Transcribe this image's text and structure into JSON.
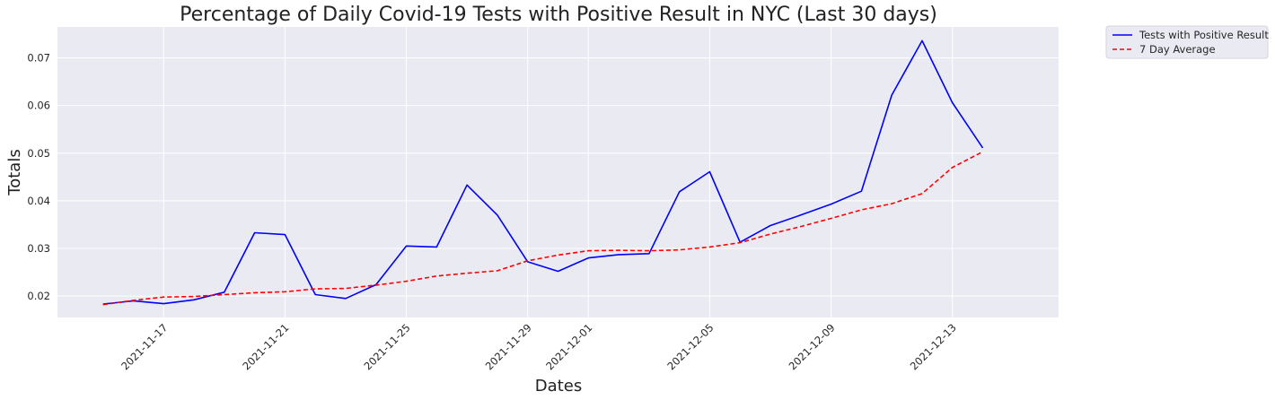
{
  "chart_data": {
    "type": "line",
    "title": "Percentage of Daily Covid-19 Tests with Positive Result in NYC (Last 30 days)",
    "xlabel": "Dates",
    "ylabel": "Totals",
    "x": [
      "2021-11-15",
      "2021-11-16",
      "2021-11-17",
      "2021-11-18",
      "2021-11-19",
      "2021-11-20",
      "2021-11-21",
      "2021-11-22",
      "2021-11-23",
      "2021-11-24",
      "2021-11-25",
      "2021-11-26",
      "2021-11-27",
      "2021-11-28",
      "2021-11-29",
      "2021-11-30",
      "2021-12-01",
      "2021-12-02",
      "2021-12-03",
      "2021-12-04",
      "2021-12-05",
      "2021-12-06",
      "2021-12-07",
      "2021-12-08",
      "2021-12-09",
      "2021-12-10",
      "2021-12-11",
      "2021-12-12",
      "2021-12-13",
      "2021-12-14"
    ],
    "xticks": [
      "2021-11-17",
      "2021-11-21",
      "2021-11-25",
      "2021-11-29",
      "2021-12-01",
      "2021-12-05",
      "2021-12-09",
      "2021-12-13"
    ],
    "xlim": [
      "2021-11-13T12:00",
      "2021-12-16T12:00"
    ],
    "yticks": [
      0.02,
      0.03,
      0.04,
      0.05,
      0.06,
      0.07
    ],
    "ylim": [
      0.0155,
      0.0765
    ],
    "grid": true,
    "legend_position": "outside top-right",
    "series": [
      {
        "name": "Tests with Positive Result",
        "color": "#0000ff",
        "style": "solid",
        "values": [
          0.0183,
          0.019,
          0.0184,
          0.0192,
          0.0208,
          0.0333,
          0.0329,
          0.0203,
          0.0195,
          0.0224,
          0.0305,
          0.0303,
          0.0433,
          0.037,
          0.0272,
          0.0252,
          0.028,
          0.0287,
          0.0289,
          0.0419,
          0.0461,
          0.0313,
          0.0348,
          0.037,
          0.0393,
          0.042,
          0.0622,
          0.0736,
          0.0606,
          0.0511
        ]
      },
      {
        "name": "7 Day Average",
        "color": "#ff0000",
        "style": "dashed",
        "values": [
          0.0182,
          0.0191,
          0.0198,
          0.0199,
          0.0203,
          0.0207,
          0.0209,
          0.0215,
          0.0216,
          0.0223,
          0.0231,
          0.0242,
          0.0248,
          0.0253,
          0.0274,
          0.0286,
          0.0295,
          0.0296,
          0.0295,
          0.0297,
          0.0303,
          0.0312,
          0.033,
          0.0346,
          0.0363,
          0.0381,
          0.0394,
          0.0415,
          0.047,
          0.0503
        ]
      }
    ],
    "colors": {
      "plot_background": "#eaeaf2",
      "gridline": "#ffffff"
    }
  }
}
